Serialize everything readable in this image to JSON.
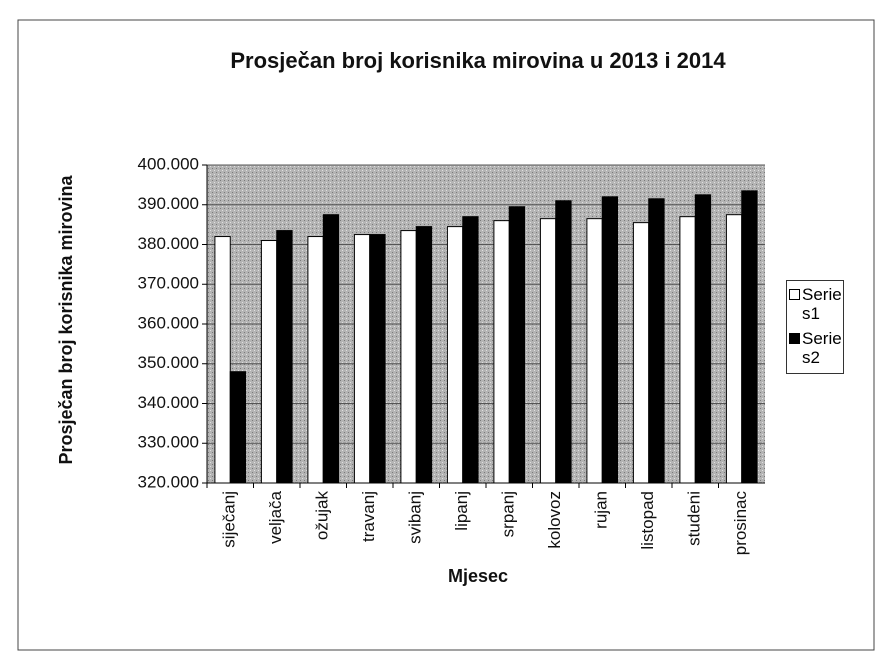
{
  "chart_data": {
    "type": "bar",
    "title": "Prosječan broj korisnika mirovina u 2013 i 2014",
    "x_label": "Mjesec",
    "y_label": "Prosječan broj korisnika mirovina",
    "categories": [
      "siječanj",
      "veljača",
      "ožujak",
      "travanj",
      "svibanj",
      "lipanj",
      "srpanj",
      "kolovoz",
      "rujan",
      "listopad",
      "studeni",
      "prosinac"
    ],
    "series": [
      {
        "name": "Serie s1",
        "color": "#ffffff",
        "values": [
          382000,
          381000,
          382000,
          382500,
          383500,
          384500,
          386000,
          386500,
          386500,
          385500,
          387000,
          387500
        ]
      },
      {
        "name": "Serie s2",
        "color": "#000000",
        "values": [
          348000,
          383500,
          387500,
          382500,
          384500,
          387000,
          389500,
          391000,
          392000,
          391500,
          392500,
          393500
        ]
      }
    ],
    "ylim": [
      320000,
      400000
    ],
    "yticks": [
      {
        "value": 320000,
        "label": "320.000"
      },
      {
        "value": 330000,
        "label": "330.000"
      },
      {
        "value": 340000,
        "label": "340.000"
      },
      {
        "value": 350000,
        "label": "350.000"
      },
      {
        "value": 360000,
        "label": "360.000"
      },
      {
        "value": 370000,
        "label": "370.000"
      },
      {
        "value": 380000,
        "label": "380.000"
      },
      {
        "value": 390000,
        "label": "390.000"
      },
      {
        "value": 400000,
        "label": "400.000"
      }
    ],
    "grid": true,
    "legend": "right"
  }
}
